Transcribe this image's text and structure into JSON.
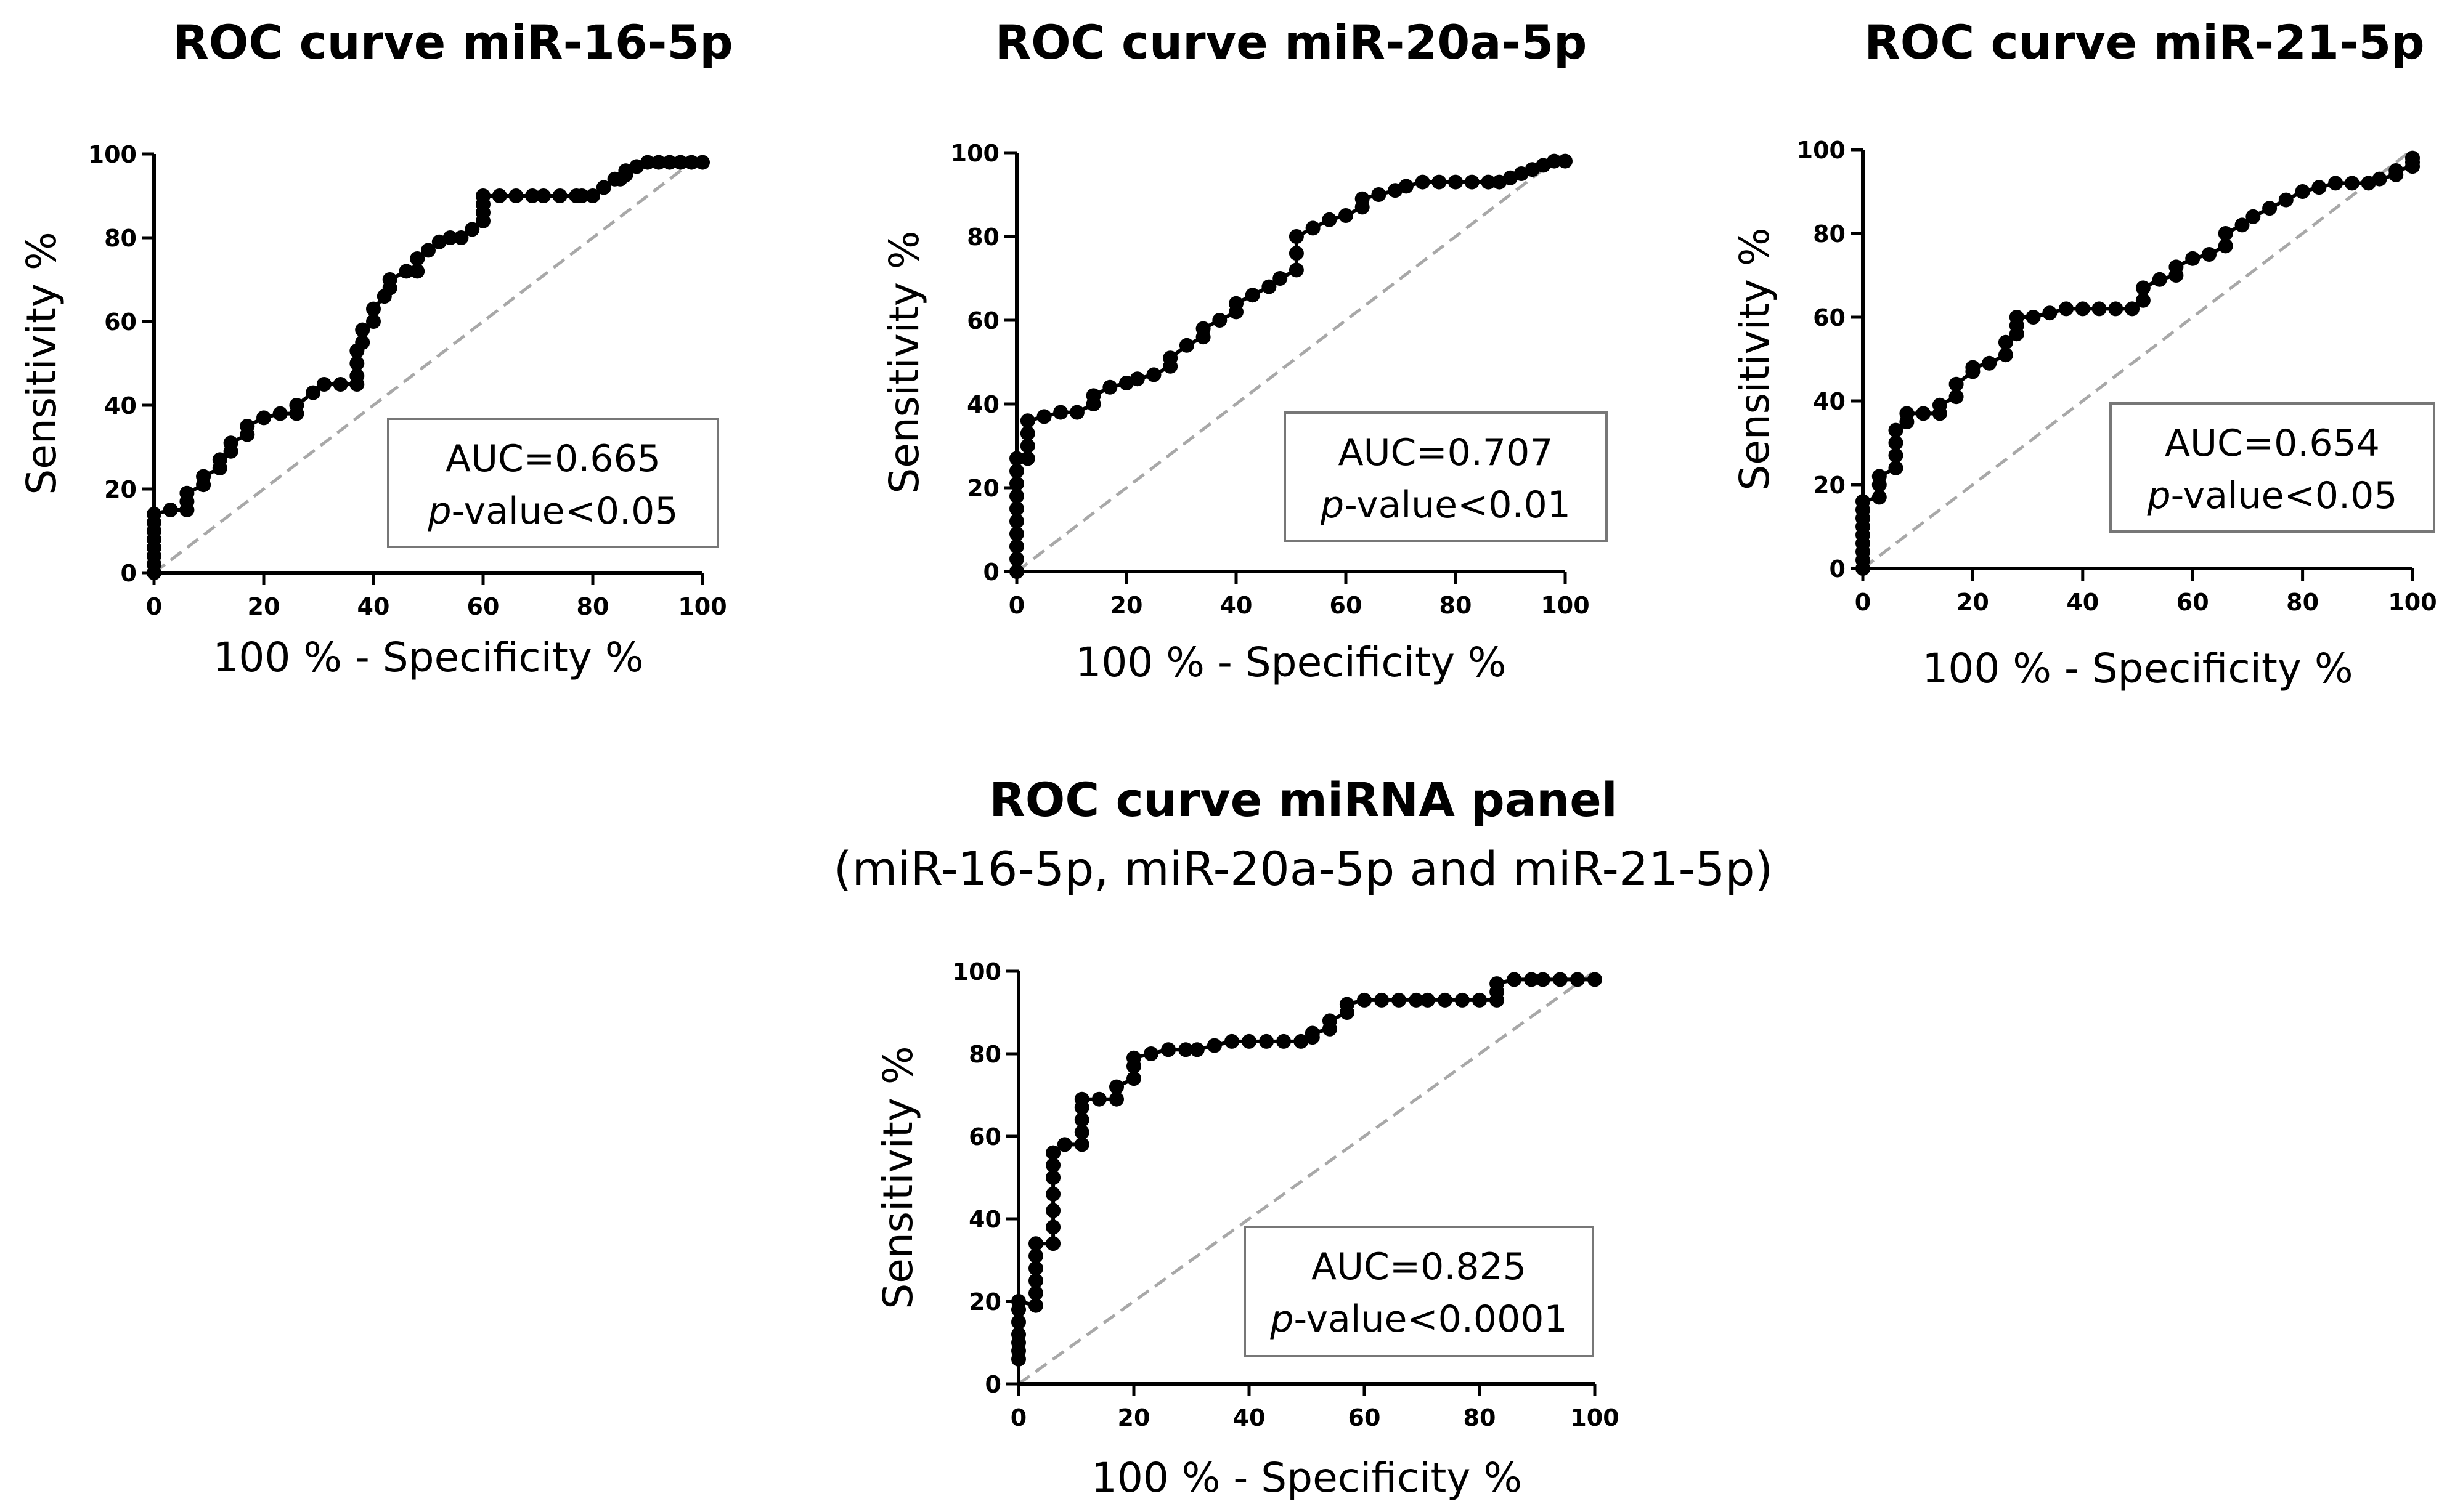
{
  "chart_data": [
    {
      "type": "line",
      "title": "ROC curve miR-16-5p",
      "xlabel": "100 % - Specificity %",
      "ylabel": "Sensitivity %",
      "xlim": [
        0,
        100
      ],
      "ylim": [
        0,
        100
      ],
      "xticks": [
        "0",
        "20",
        "40",
        "60",
        "80",
        "100"
      ],
      "yticks": [
        "0",
        "20",
        "40",
        "60",
        "80",
        "100"
      ],
      "auc_label": "AUC=0.665",
      "p_italic": "p",
      "p_rest": "-value<0.05",
      "reference_line": [
        [
          0,
          0
        ],
        [
          100,
          100
        ]
      ],
      "series": [
        {
          "name": "ROC",
          "x": [
            0,
            0,
            0,
            0,
            0,
            0,
            0,
            0,
            3,
            6,
            6,
            6,
            9,
            9,
            12,
            12,
            14,
            14,
            17,
            17,
            20,
            23,
            26,
            26,
            29,
            31,
            34,
            37,
            37,
            37,
            37,
            38,
            38,
            40,
            40,
            42,
            43,
            43,
            46,
            48,
            48,
            50,
            52,
            54,
            56,
            58,
            60,
            60,
            60,
            60,
            63,
            66,
            69,
            71,
            74,
            77,
            78,
            80,
            82,
            84,
            85,
            86,
            86,
            88,
            90,
            92,
            94,
            96,
            98,
            100
          ],
          "y": [
            0,
            2,
            4,
            6,
            8,
            10,
            12,
            14,
            15,
            15,
            17,
            19,
            21,
            23,
            25,
            27,
            29,
            31,
            33,
            35,
            37,
            38,
            38,
            40,
            43,
            45,
            45,
            45,
            47,
            50,
            53,
            55,
            58,
            60,
            63,
            66,
            68,
            70,
            72,
            72,
            75,
            77,
            79,
            80,
            80,
            82,
            84,
            86,
            88,
            90,
            90,
            90,
            90,
            90,
            90,
            90,
            90,
            90,
            92,
            94,
            94,
            95,
            96,
            97,
            98,
            98,
            98,
            98,
            98,
            98
          ]
        }
      ]
    },
    {
      "type": "line",
      "title": "ROC curve miR-20a-5p",
      "xlabel": "100 % - Specificity %",
      "ylabel": "Sensitivity %",
      "xlim": [
        0,
        100
      ],
      "ylim": [
        0,
        100
      ],
      "xticks": [
        "0",
        "20",
        "40",
        "60",
        "80",
        "100"
      ],
      "yticks": [
        "0",
        "20",
        "40",
        "60",
        "80",
        "100"
      ],
      "auc_label": "AUC=0.707",
      "p_italic": "p",
      "p_rest": "-value<0.01",
      "reference_line": [
        [
          0,
          0
        ],
        [
          100,
          100
        ]
      ],
      "series": [
        {
          "name": "ROC",
          "x": [
            0,
            0,
            0,
            0,
            0,
            0,
            0,
            0,
            0,
            0,
            2,
            2,
            2,
            2,
            5,
            8,
            11,
            14,
            14,
            17,
            20,
            22,
            25,
            28,
            28,
            31,
            34,
            34,
            37,
            40,
            40,
            43,
            46,
            48,
            51,
            51,
            51,
            54,
            57,
            60,
            63,
            63,
            66,
            69,
            71,
            74,
            77,
            80,
            83,
            86,
            88,
            90,
            92,
            94,
            96,
            98,
            100
          ],
          "y": [
            0,
            3,
            6,
            9,
            12,
            15,
            18,
            21,
            24,
            27,
            27,
            30,
            33,
            36,
            37,
            38,
            38,
            40,
            42,
            44,
            45,
            46,
            47,
            49,
            51,
            54,
            56,
            58,
            60,
            62,
            64,
            66,
            68,
            70,
            72,
            76,
            80,
            82,
            84,
            85,
            87,
            89,
            90,
            91,
            92,
            93,
            93,
            93,
            93,
            93,
            93,
            94,
            95,
            96,
            97,
            98,
            98
          ]
        }
      ]
    },
    {
      "type": "line",
      "title": "ROC curve miR-21-5p",
      "xlabel": "100 % - Specificity %",
      "ylabel": "Sensitivity %",
      "xlim": [
        0,
        100
      ],
      "ylim": [
        0,
        100
      ],
      "xticks": [
        "0",
        "20",
        "40",
        "60",
        "80",
        "100"
      ],
      "yticks": [
        "0",
        "20",
        "40",
        "60",
        "80",
        "100"
      ],
      "auc_label": "AUC=0.654",
      "p_italic": "p",
      "p_rest": "-value<0.05",
      "reference_line": [
        [
          0,
          0
        ],
        [
          100,
          100
        ]
      ],
      "series": [
        {
          "name": "ROC",
          "x": [
            0,
            0,
            0,
            0,
            0,
            0,
            0,
            0,
            0,
            3,
            3,
            3,
            6,
            6,
            6,
            6,
            8,
            8,
            11,
            14,
            14,
            17,
            17,
            20,
            20,
            23,
            26,
            26,
            28,
            28,
            28,
            31,
            34,
            37,
            40,
            43,
            46,
            49,
            51,
            51,
            54,
            57,
            57,
            60,
            63,
            66,
            66,
            69,
            71,
            74,
            77,
            80,
            83,
            86,
            89,
            92,
            94,
            97,
            97,
            100,
            100,
            100
          ],
          "y": [
            0,
            2,
            4,
            6,
            8,
            10,
            12,
            14,
            16,
            17,
            20,
            22,
            24,
            27,
            30,
            33,
            35,
            37,
            37,
            37,
            39,
            41,
            44,
            47,
            48,
            49,
            51,
            54,
            56,
            58,
            60,
            60,
            61,
            62,
            62,
            62,
            62,
            62,
            64,
            67,
            69,
            70,
            72,
            74,
            75,
            77,
            80,
            82,
            84,
            86,
            88,
            90,
            91,
            92,
            92,
            92,
            93,
            94,
            95,
            96,
            97,
            98
          ]
        }
      ]
    },
    {
      "type": "line",
      "title": "ROC curve miRNA panel",
      "subtitle": "(miR-16-5p, miR-20a-5p and miR-21-5p)",
      "xlabel": "100 % - Specificity %",
      "ylabel": "Sensitivity %",
      "xlim": [
        0,
        100
      ],
      "ylim": [
        0,
        100
      ],
      "xticks": [
        "0",
        "20",
        "40",
        "60",
        "80",
        "100"
      ],
      "yticks": [
        "0",
        "20",
        "40",
        "60",
        "80",
        "100"
      ],
      "auc_label": "AUC=0.825",
      "p_italic": "p",
      "p_rest": "-value<0.0001",
      "reference_line": [
        [
          0,
          0
        ],
        [
          100,
          100
        ]
      ],
      "series": [
        {
          "name": "ROC",
          "x": [
            0,
            0,
            0,
            0,
            0,
            0,
            0,
            3,
            3,
            3,
            3,
            3,
            3,
            6,
            6,
            6,
            6,
            6,
            6,
            6,
            6,
            8,
            11,
            11,
            11,
            11,
            11,
            14,
            17,
            17,
            20,
            20,
            20,
            23,
            26,
            29,
            31,
            34,
            37,
            40,
            43,
            46,
            49,
            51,
            51,
            54,
            54,
            57,
            57,
            60,
            63,
            66,
            69,
            71,
            74,
            77,
            80,
            83,
            83,
            83,
            86,
            89,
            91,
            94,
            97,
            100
          ],
          "y": [
            6,
            8,
            10,
            12,
            15,
            18,
            20,
            19,
            22,
            25,
            28,
            31,
            34,
            34,
            38,
            42,
            46,
            50,
            53,
            56,
            56,
            58,
            58,
            61,
            64,
            67,
            69,
            69,
            69,
            72,
            74,
            77,
            79,
            80,
            81,
            81,
            81,
            82,
            83,
            83,
            83,
            83,
            83,
            84,
            85,
            86,
            88,
            90,
            92,
            93,
            93,
            93,
            93,
            93,
            93,
            93,
            93,
            93,
            95,
            97,
            98,
            98,
            98,
            98,
            98,
            98
          ]
        }
      ]
    }
  ]
}
